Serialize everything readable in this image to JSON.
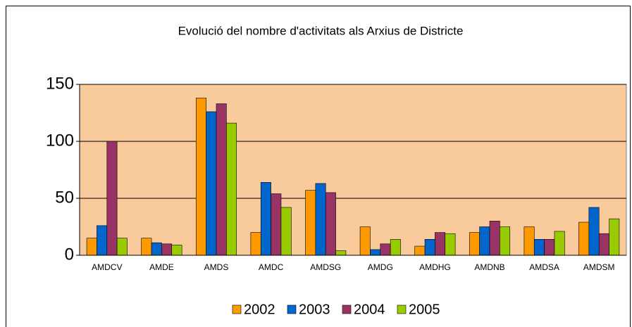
{
  "chart_data": {
    "type": "bar",
    "title": "Evolució del nombre d'activitats als Arxius de Districte",
    "categories": [
      "AMDCV",
      "AMDE",
      "AMDS",
      "AMDC",
      "AMDSG",
      "AMDG",
      "AMDHG",
      "AMDNB",
      "AMDSA",
      "AMDSM"
    ],
    "series": [
      {
        "name": "2002",
        "color": "#FF9900",
        "values": [
          15,
          15,
          138,
          20,
          57,
          25,
          8,
          20,
          25,
          29
        ]
      },
      {
        "name": "2003",
        "color": "#0066CC",
        "values": [
          26,
          11,
          126,
          64,
          63,
          5,
          14,
          25,
          14,
          42
        ]
      },
      {
        "name": "2004",
        "color": "#993366",
        "values": [
          100,
          10,
          133,
          54,
          55,
          10,
          20,
          30,
          14,
          19
        ]
      },
      {
        "name": "2005",
        "color": "#99CC00",
        "values": [
          15,
          9,
          116,
          42,
          4,
          14,
          19,
          25,
          21,
          32
        ]
      }
    ],
    "ylim": [
      0,
      150
    ],
    "yticks": [
      0,
      50,
      100,
      150
    ],
    "grid": true,
    "legend": "bottom"
  }
}
